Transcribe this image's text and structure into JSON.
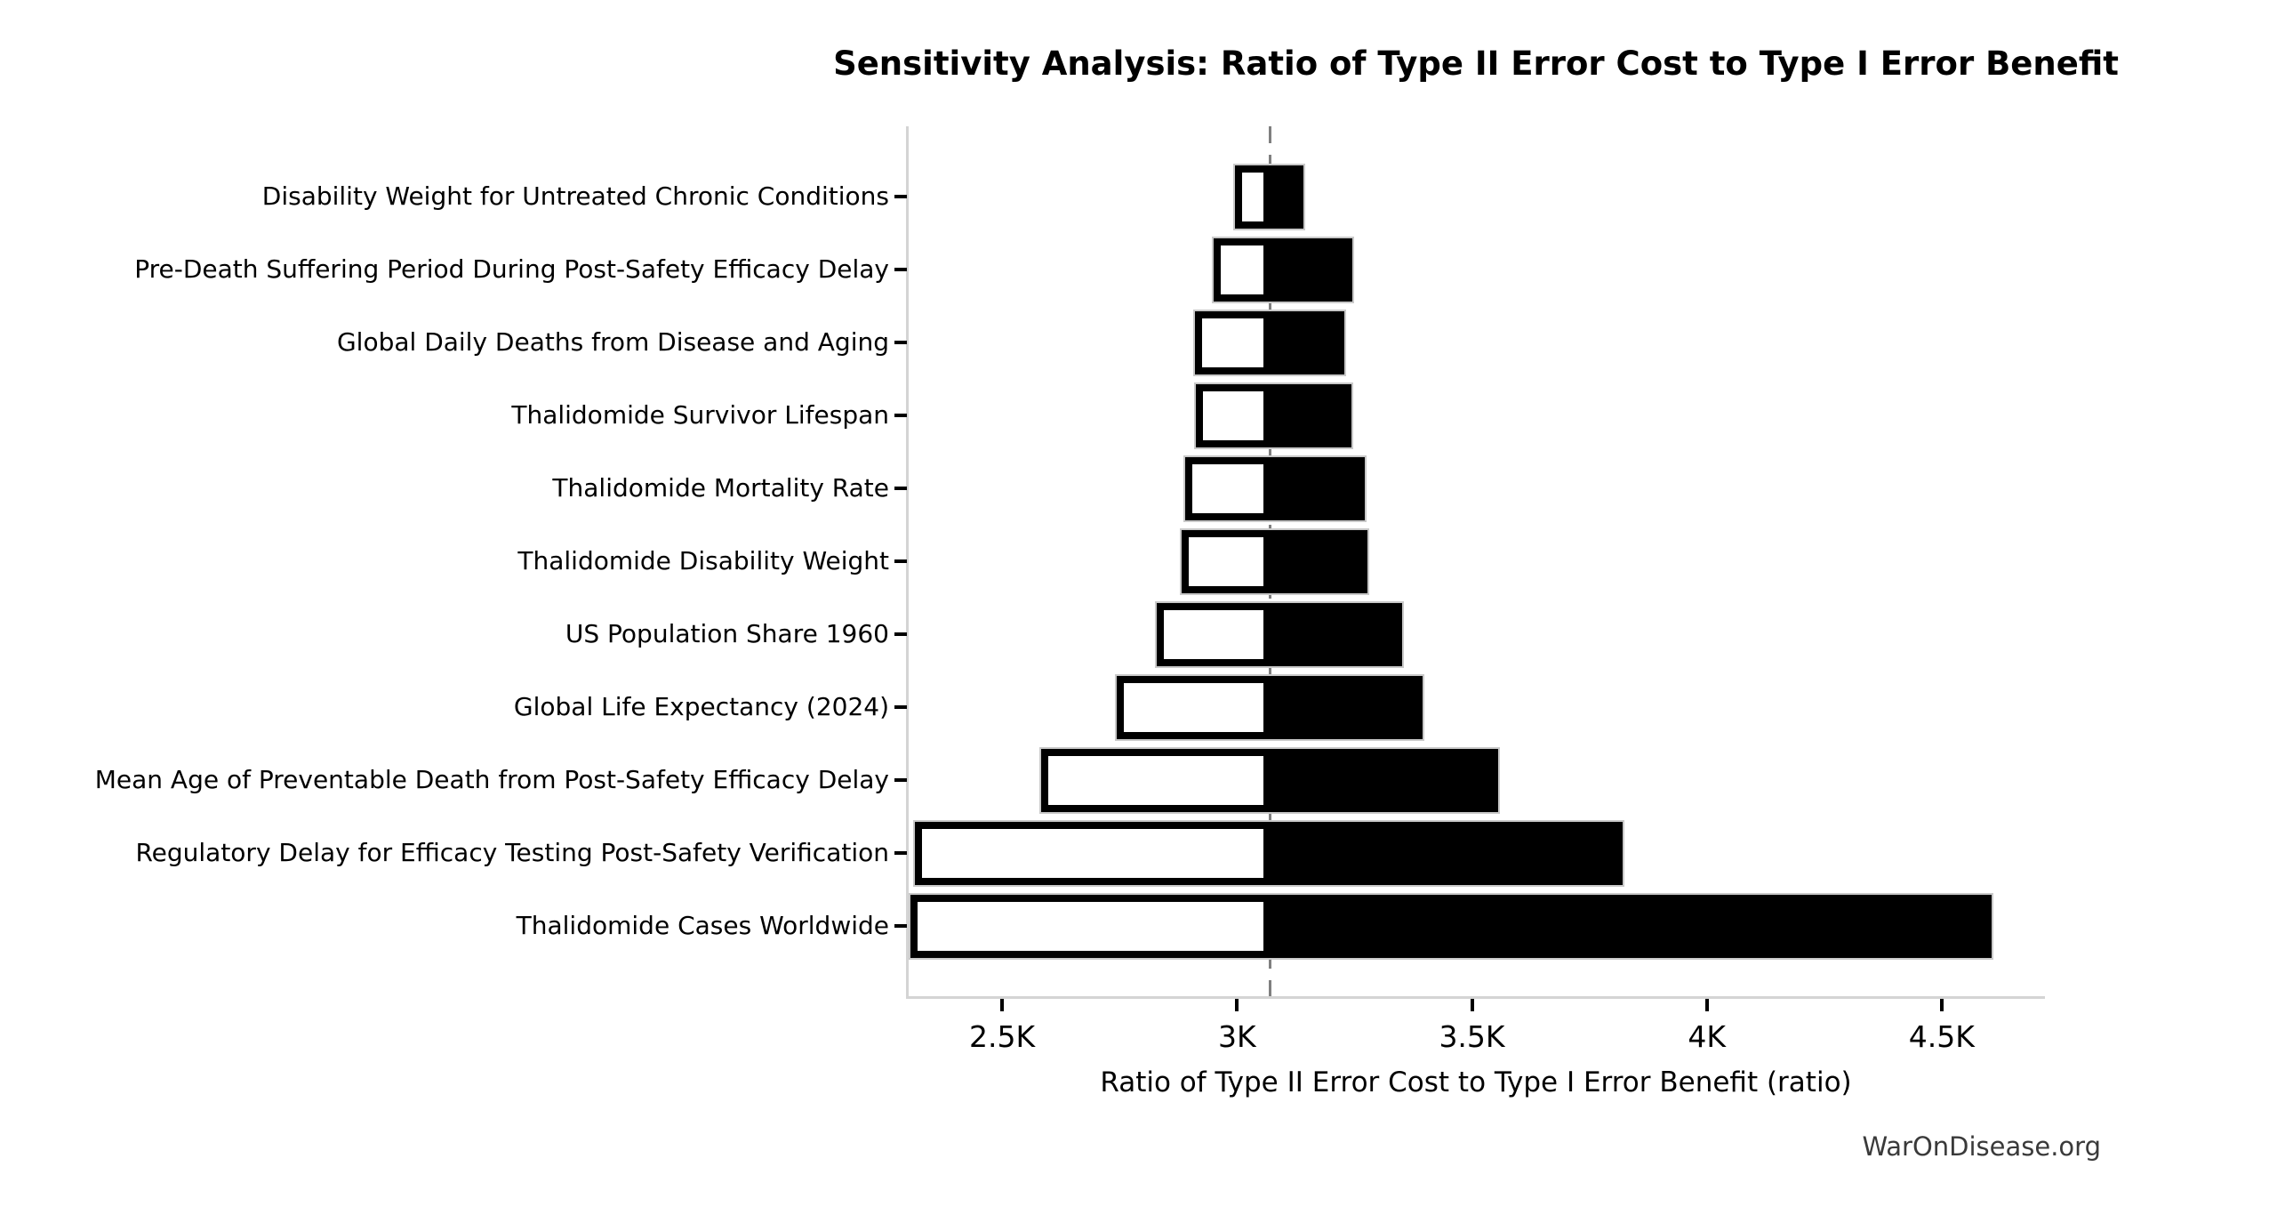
{
  "chart_data": {
    "type": "bar",
    "variant": "tornado-sensitivity",
    "orientation": "horizontal",
    "title": "Sensitivity Analysis: Ratio of Type II Error Cost to Type I Error Benefit",
    "xlabel": "Ratio of Type II Error Cost to Type I Error Benefit (ratio)",
    "xlim": [
      2301,
      4718
    ],
    "grid": false,
    "legend": null,
    "baseline_value": 3071,
    "xticks": [
      {
        "value": 2500,
        "label": "2.5K"
      },
      {
        "value": 3000,
        "label": "3K"
      },
      {
        "value": 3500,
        "label": "3.5K"
      },
      {
        "value": 4000,
        "label": "4K"
      },
      {
        "value": 4500,
        "label": "4.5K"
      }
    ],
    "bars": [
      {
        "label": "Disability Weight for Untreated Chronic Conditions",
        "low": 2996,
        "high": 3141
      },
      {
        "label": "Pre-Death Suffering Period During Post-Safety Efficacy Delay",
        "low": 2950,
        "high": 3245
      },
      {
        "label": "Global Daily Deaths from Disease and Aging",
        "low": 2910,
        "high": 3229
      },
      {
        "label": "Thalidomide Survivor Lifespan",
        "low": 2912,
        "high": 3244
      },
      {
        "label": "Thalidomide Mortality Rate",
        "low": 2889,
        "high": 3272
      },
      {
        "label": "Thalidomide Disability Weight",
        "low": 2882,
        "high": 3277
      },
      {
        "label": "US Population Share 1960",
        "low": 2829,
        "high": 3351
      },
      {
        "label": "Global Life Expectancy (2024)",
        "low": 2744,
        "high": 3395
      },
      {
        "label": "Mean Age of Preventable Death from Post-Safety Efficacy Delay",
        "low": 2583,
        "high": 3556
      },
      {
        "label": "Regulatory Delay for Efficacy Testing Post-Safety Verification",
        "low": 2315,
        "high": 3821
      },
      {
        "label": "Thalidomide Cases Worldwide",
        "low": 2305,
        "high": 4606
      }
    ],
    "colors": {
      "low_fill": "#ffffff",
      "high_fill": "#000000",
      "bar_edge": "#000000",
      "bar_outline": "#c9c9c9",
      "baseline": "#7f7f7f",
      "spine": "#d4d4d4",
      "text": "#000000",
      "watermark_text": "#3a3a3a"
    }
  },
  "footer": {
    "watermark": "WarOnDisease.org"
  }
}
